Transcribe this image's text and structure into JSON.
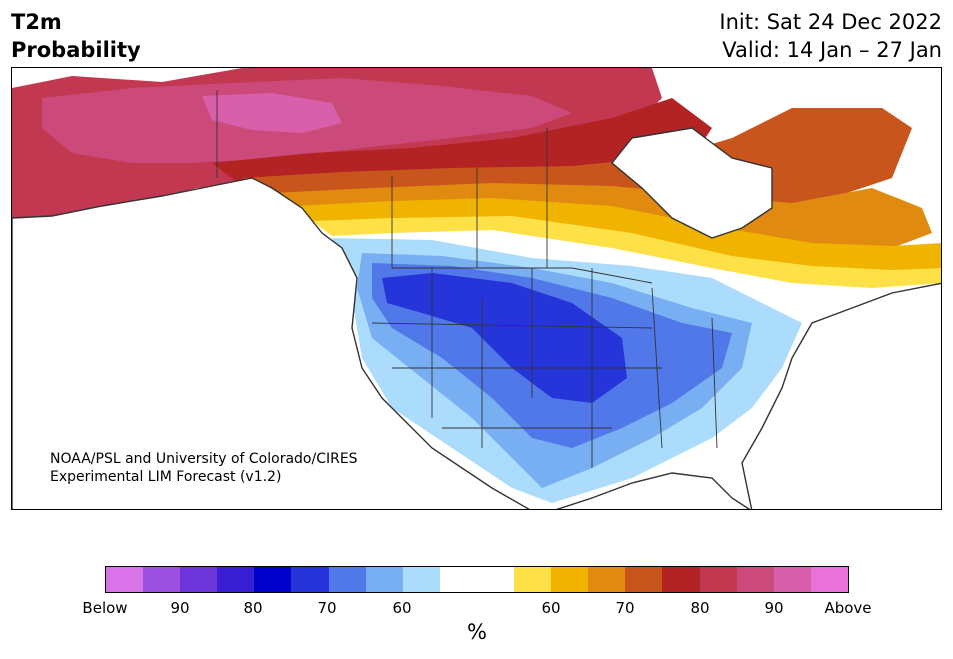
{
  "header": {
    "variable": "T2m",
    "subtitle": "Probability",
    "init": "Init: Sat 24 Dec 2022",
    "valid": "Valid: 14 Jan – 27 Jan"
  },
  "credit": {
    "line1": "NOAA/PSL and University of Colorado/CIRES",
    "line2": "Experimental LIM Forecast (v1.2)"
  },
  "colorbar": {
    "unit": "%",
    "colors": [
      "#d874e8",
      "#9b4fe0",
      "#6b35d9",
      "#3a1ed4",
      "#0000cc",
      "#2635d9",
      "#5078e8",
      "#78aef2",
      "#acdcfb",
      "#ffffff",
      "#ffffff",
      "#fee047",
      "#f0b300",
      "#e08a10",
      "#c8551c",
      "#b42323",
      "#c23850",
      "#cc4a7a",
      "#d860aa",
      "#e872d8"
    ],
    "labels": [
      "Below",
      "90",
      "80",
      "70",
      "60",
      "60",
      "70",
      "80",
      "90",
      "Above"
    ]
  },
  "map_colors": {
    "ocean": "#ffffff",
    "coast": "#333333",
    "above90": "#cc4a7a",
    "above95": "#d860aa",
    "above80": "#c23850",
    "above75": "#b42323",
    "above70": "#c8551c",
    "above65": "#e08a10",
    "above60": "#f0b300",
    "above55": "#fee047",
    "below55": "#acdcfb",
    "below60": "#78aef2",
    "below65": "#5078e8",
    "below70": "#2635d9"
  }
}
